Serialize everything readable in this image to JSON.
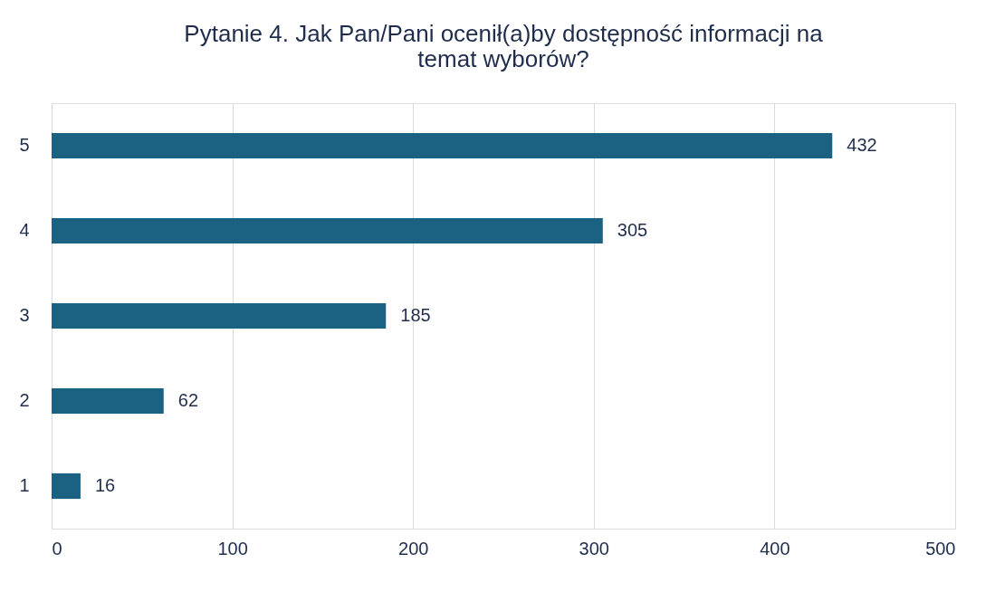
{
  "chart_data": {
    "type": "bar",
    "orientation": "horizontal",
    "title": "Pytanie 4. Jak Pan/Pani ocenił(a)by dostępność informacji na temat wyborów?",
    "categories": [
      "5",
      "4",
      "3",
      "2",
      "1"
    ],
    "values": [
      432,
      305,
      185,
      62,
      16
    ],
    "color": "#1a6182",
    "xlim": [
      0,
      500
    ],
    "xticks": [
      0,
      100,
      200,
      300,
      400,
      500
    ],
    "grid": "x",
    "data_labels": true
  }
}
